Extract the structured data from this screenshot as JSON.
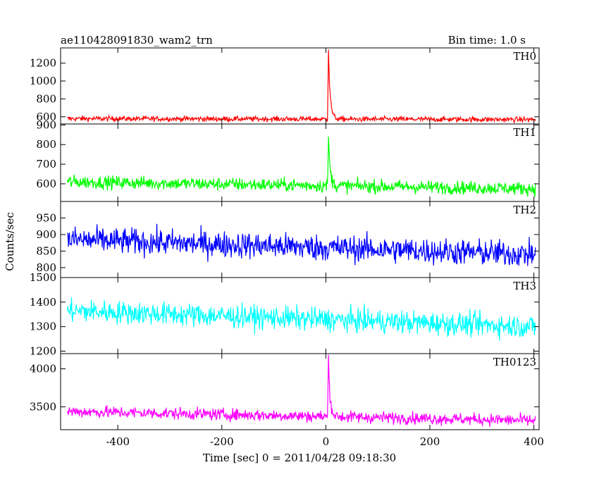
{
  "chart_data": {
    "type": "line",
    "title": "ae110428091830_wam2_trn",
    "bin_time_label": "Bin time: 1.0 s",
    "xlabel": "Time [sec] 0 = 2011/04/28 09:18:30",
    "ylabel": "Counts/sec",
    "xlim": [
      -510,
      410
    ],
    "xticks": [
      -400,
      -200,
      0,
      200,
      400
    ],
    "x_start": -497,
    "x_end": 403,
    "bin": 1.0,
    "panels": [
      {
        "name": "TH0",
        "color": "#ff0000",
        "ylim": [
          520,
          1370
        ],
        "yticks": [
          600,
          800,
          1000,
          1200
        ],
        "baseline_start": 580,
        "baseline_end": 570,
        "noise": 28,
        "burst": {
          "t": 5,
          "peak": 1370,
          "decay": 3.5
        }
      },
      {
        "name": "TH1",
        "color": "#00ff00",
        "ylim": [
          510,
          905
        ],
        "yticks": [
          600,
          700,
          800,
          900
        ],
        "baseline_start": 610,
        "baseline_end": 575,
        "noise": 32,
        "burst": {
          "t": 5,
          "peak": 860,
          "decay": 3.5
        }
      },
      {
        "name": "TH2",
        "color": "#0000ff",
        "ylim": [
          770,
          1000
        ],
        "yticks": [
          800,
          850,
          900,
          950
        ],
        "baseline_start": 885,
        "baseline_end": 840,
        "noise": 38,
        "burst": null
      },
      {
        "name": "TH3",
        "color": "#00ffff",
        "ylim": [
          1190,
          1500
        ],
        "yticks": [
          1200,
          1300,
          1400,
          1500
        ],
        "baseline_start": 1365,
        "baseline_end": 1300,
        "noise": 45,
        "burst": null
      },
      {
        "name": "TH0123",
        "color": "#ff00ff",
        "ylim": [
          3200,
          4200
        ],
        "yticks": [
          3500,
          4000
        ],
        "baseline_start": 3440,
        "baseline_end": 3320,
        "noise": 75,
        "burst": {
          "t": 5,
          "peak": 4200,
          "decay": 3.5
        }
      }
    ]
  }
}
